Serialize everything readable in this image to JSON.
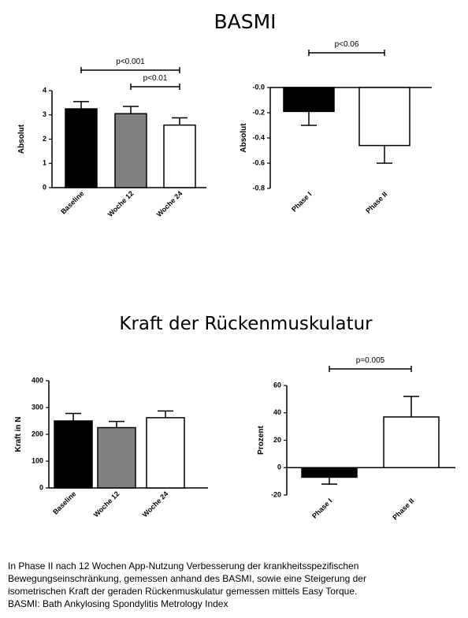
{
  "headings": [
    "BASMI",
    "Kraft der Rückenmuskulatur"
  ],
  "caption": [
    "In Phase II nach 12 Wochen App-Nutzung Verbesserung der krankheitsspezifischen",
    "Bewegungseinschränkung, gemessen anhand des BASMI, sowie eine Steigerung der",
    "isometrischen Kraft der geraden Rückenmuskulatur gemessen mittels Easy Torque.",
    "BASMI: Bath Ankylosing Spondylitis Metrology Index"
  ],
  "chart_data": [
    {
      "type": "bar",
      "y_label": "Absolut",
      "categories": [
        "Baseline",
        "Woche 12",
        "Woche 24"
      ],
      "values": [
        3.25,
        3.05,
        2.58
      ],
      "errors": [
        0.3,
        0.3,
        0.3
      ],
      "colors": [
        "#000000",
        "#808080",
        "#ffffff"
      ],
      "ylim": [
        0,
        4
      ],
      "yticks": [
        0,
        1,
        2,
        3,
        4
      ],
      "annotations": [
        "p<0.001",
        "p<0.01"
      ]
    },
    {
      "type": "bar",
      "y_label": "Absolut",
      "categories": [
        "Phase I",
        "Phase II"
      ],
      "values": [
        -0.19,
        -0.46
      ],
      "errors": [
        0.11,
        0.14
      ],
      "colors": [
        "#000000",
        "#ffffff"
      ],
      "ylim": [
        -0.8,
        0
      ],
      "yticks": [
        {
          "value": 0,
          "label": "-0.0"
        },
        -0.2,
        -0.4,
        -0.6,
        -0.8
      ],
      "annotations": [
        "p<0.06"
      ]
    },
    {
      "type": "bar",
      "y_label": "Kraft in N",
      "categories": [
        "Baseline",
        "Woche 12",
        "Woche 24"
      ],
      "values": [
        250,
        225,
        262
      ],
      "errors": [
        28,
        23,
        25
      ],
      "colors": [
        "#000000",
        "#808080",
        "#ffffff"
      ],
      "ylim": [
        0,
        400
      ],
      "yticks": [
        0,
        100,
        200,
        300,
        400
      ]
    },
    {
      "type": "bar",
      "y_label": "Prozent",
      "categories": [
        "Phase I",
        "Phase II"
      ],
      "values": [
        -7,
        37
      ],
      "errors": [
        5,
        15
      ],
      "colors": [
        "#000000",
        "#ffffff"
      ],
      "ylim": [
        -20,
        60
      ],
      "yticks": [
        -20,
        0,
        20,
        40,
        60
      ],
      "annotations": [
        "p=0.005"
      ]
    }
  ]
}
